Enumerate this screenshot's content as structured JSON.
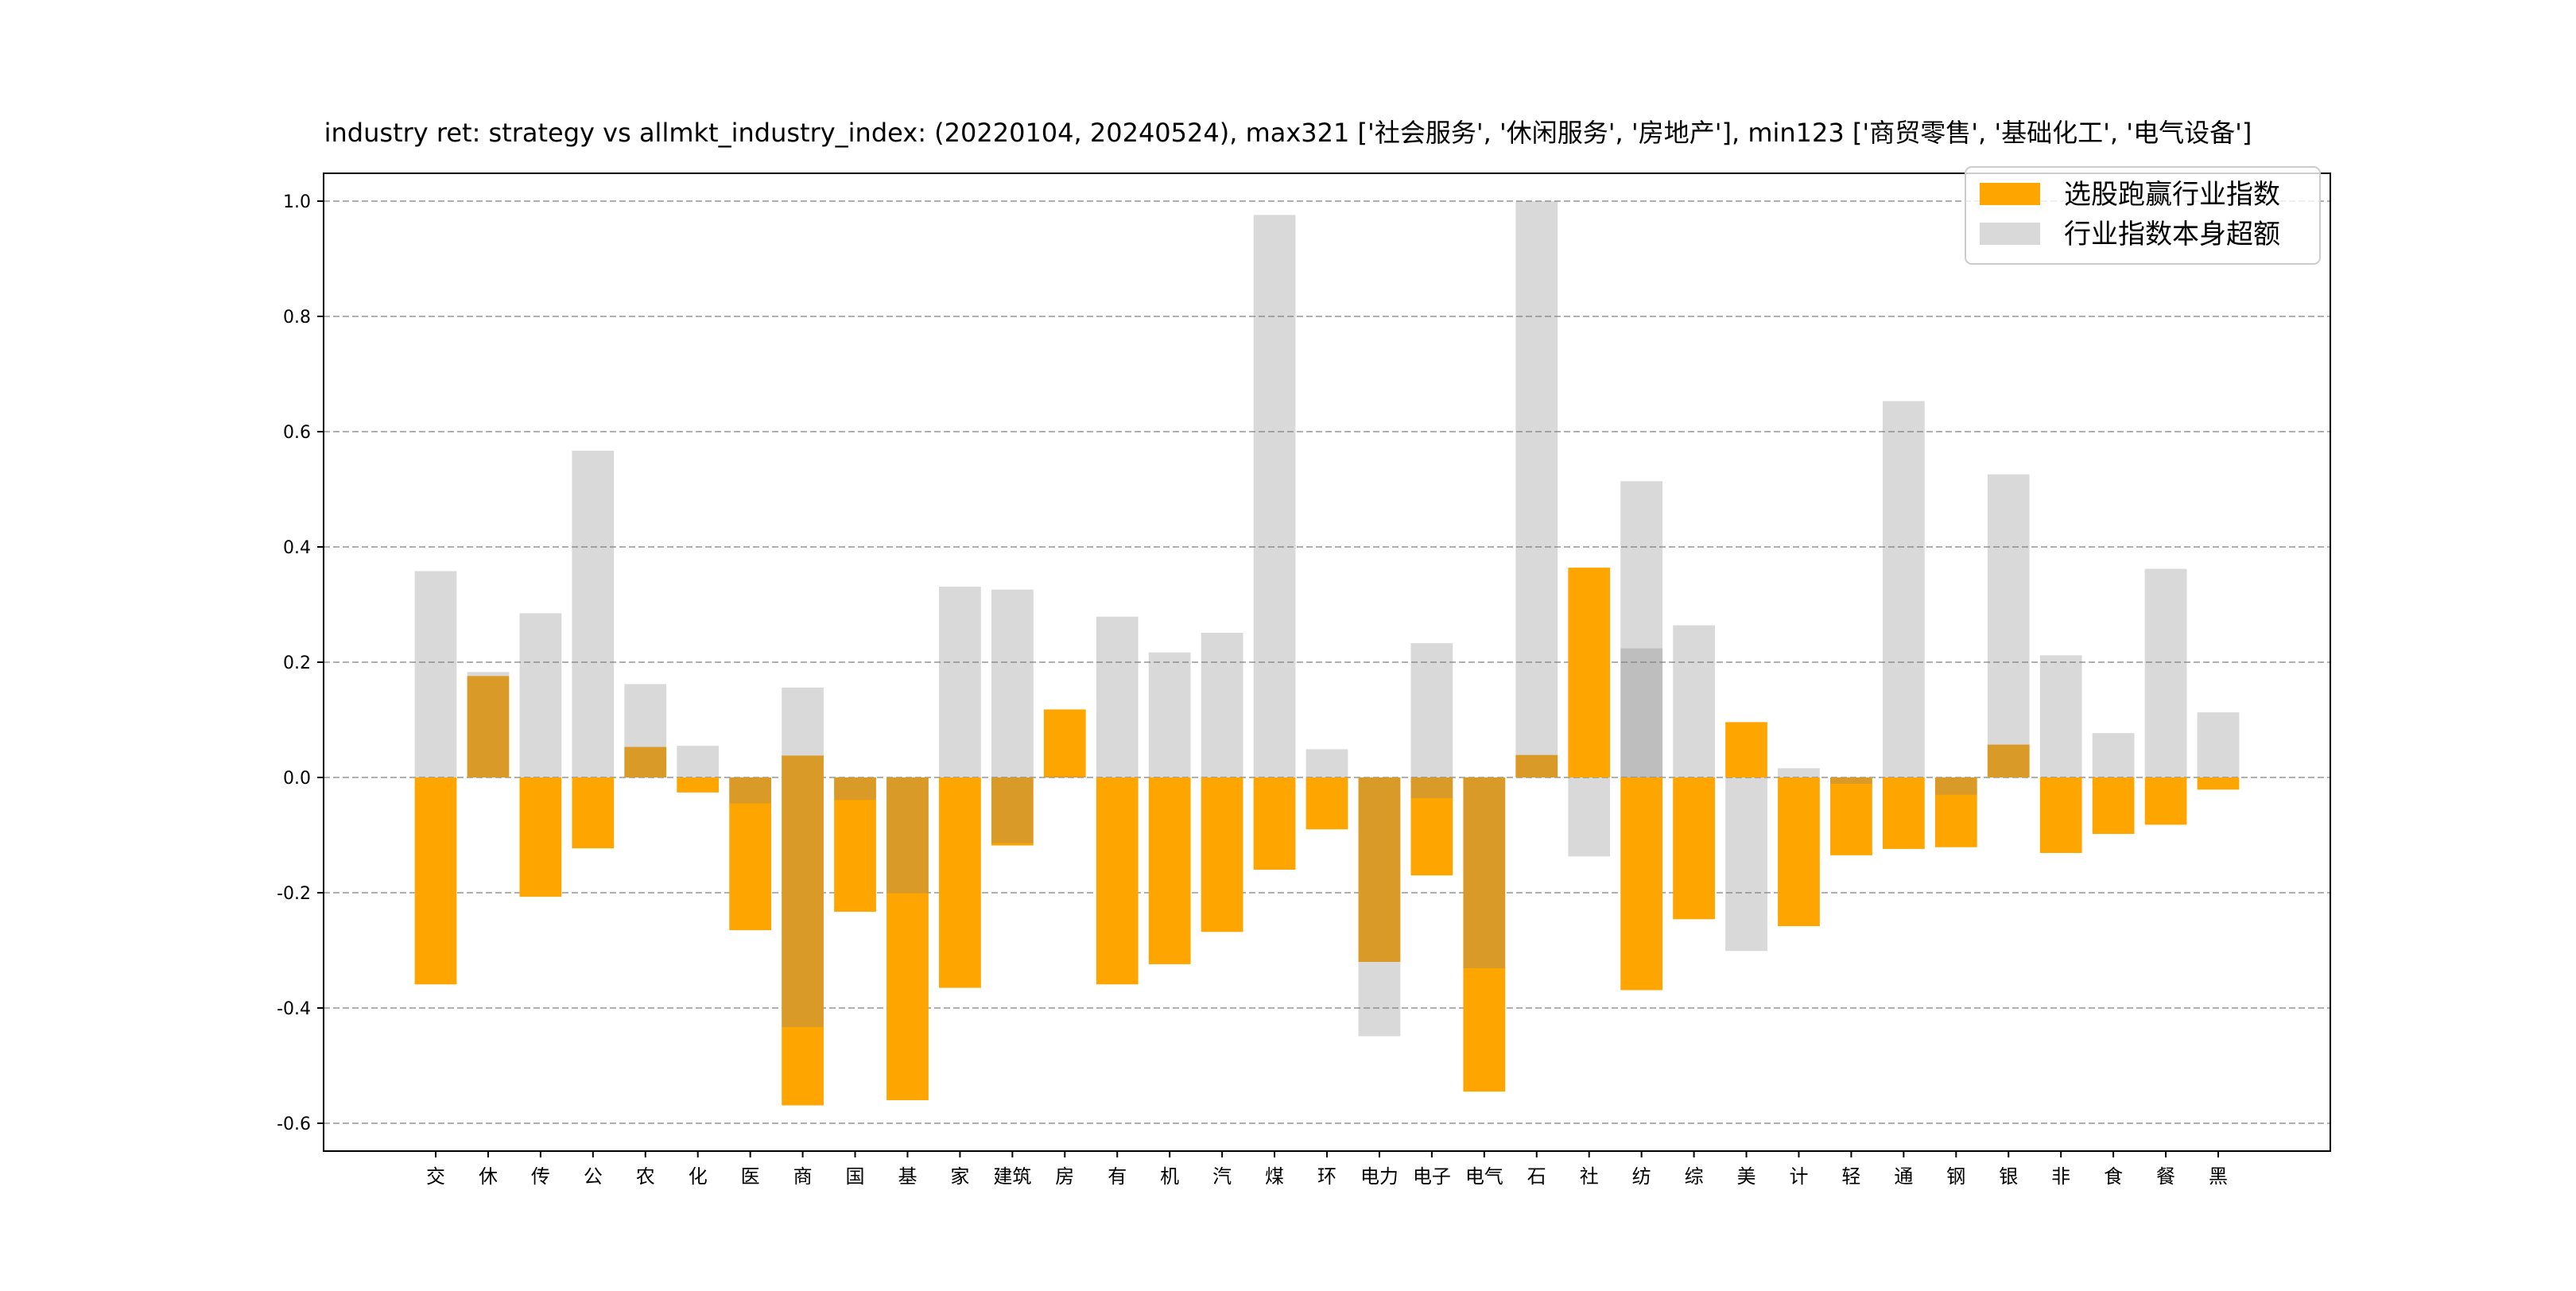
{
  "chart_data": {
    "type": "bar",
    "title": "industry ret: strategy vs allmkt_industry_index: (20220104, 20240524), max321 ['社会服务', '休闲服务', '房地产'], min123 ['商贸零售', '基础化工', '电气设备']",
    "xlabel": "",
    "ylabel": "",
    "ylim": [
      -0.65,
      1.05
    ],
    "yticks": [
      "-0.6",
      "-0.4",
      "-0.2",
      "0.0",
      "0.2",
      "0.4",
      "0.6",
      "0.8",
      "1.0"
    ],
    "grid": true,
    "legend_position": "top-right",
    "categories": [
      "交",
      "休",
      "传",
      "公",
      "农",
      "化",
      "医",
      "商",
      "国",
      "基",
      "家",
      "建筑",
      "房",
      "有",
      "机",
      "汽",
      "煤",
      "环",
      "电力",
      "电子",
      "电气",
      "石",
      "社",
      "纺",
      "综",
      "美",
      "计",
      "轻",
      "通",
      "钢",
      "银",
      "非",
      "食",
      "餐",
      "黑"
    ],
    "series": [
      {
        "name": "选股跑赢行业指数",
        "color": "#ffa500",
        "values": [
          [
            -0.359
          ],
          [
            0.176
          ],
          [
            -0.207
          ],
          [
            -0.123
          ],
          [
            0.053
          ],
          [
            -0.026
          ],
          [
            -0.265
          ],
          [
            0.038,
            -0.569
          ],
          [
            -0.233
          ],
          [
            -0.56
          ],
          [
            -0.365
          ],
          [
            -0.118
          ],
          [
            0.118
          ],
          [
            -0.359
          ],
          [
            -0.324
          ],
          [
            -0.268
          ],
          [
            -0.16
          ],
          [
            -0.09
          ],
          [
            -0.32
          ],
          [
            -0.17
          ],
          [
            -0.545
          ],
          [
            0.039
          ],
          [
            0.364
          ],
          [
            -0.369
          ],
          [
            -0.246
          ],
          [
            0.096
          ],
          [
            -0.258
          ],
          [
            -0.135
          ],
          [
            -0.124
          ],
          [
            -0.121
          ],
          [
            0.057
          ],
          [
            -0.131
          ],
          [
            -0.098
          ],
          [
            -0.082
          ],
          [
            -0.021
          ]
        ]
      },
      {
        "name": "行业指数本身超额",
        "color": "#808080",
        "values": [
          [
            0.358
          ],
          [
            0.183
          ],
          [
            0.285
          ],
          [
            0.567
          ],
          [
            0.162
          ],
          [
            0.055
          ],
          [
            -0.045
          ],
          [
            0.156,
            -0.433
          ],
          [
            -0.039
          ],
          [
            -0.201
          ],
          [
            0.331
          ],
          [
            0.326,
            -0.114
          ],
          [
            0.002
          ],
          [
            0.279
          ],
          [
            0.217
          ],
          [
            0.251
          ],
          [
            0.976
          ],
          [
            0.049
          ],
          [
            -0.449
          ],
          [
            0.233,
            -0.036
          ],
          [
            -0.331
          ],
          [
            1.0
          ],
          [
            -0.137
          ],
          [
            0.514,
            0.224
          ],
          [
            0.264
          ],
          [
            -0.301
          ],
          [
            0.016
          ],
          [
            -0.011
          ],
          [
            0.653
          ],
          [
            -0.03
          ],
          [
            0.526
          ],
          [
            0.212
          ],
          [
            0.077
          ],
          [
            0.362
          ],
          [
            0.113
          ]
        ]
      }
    ]
  }
}
